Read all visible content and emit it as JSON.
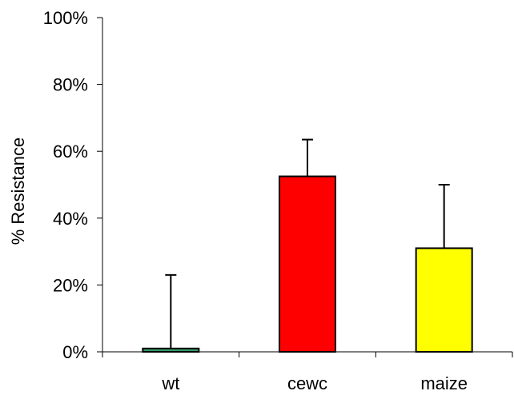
{
  "chart_data": {
    "type": "bar",
    "title": "",
    "xlabel": "",
    "ylabel": "% Resistance",
    "ylim": [
      0,
      100
    ],
    "yticks": [
      "0%",
      "20%",
      "40%",
      "60%",
      "80%",
      "100%"
    ],
    "categories": [
      "wt",
      "cewc",
      "maize"
    ],
    "values": [
      1,
      52.5,
      31
    ],
    "error_upper": [
      23,
      63.5,
      50
    ],
    "colors": [
      "#339966",
      "#ff0000",
      "#ffff00"
    ],
    "grid": false
  }
}
